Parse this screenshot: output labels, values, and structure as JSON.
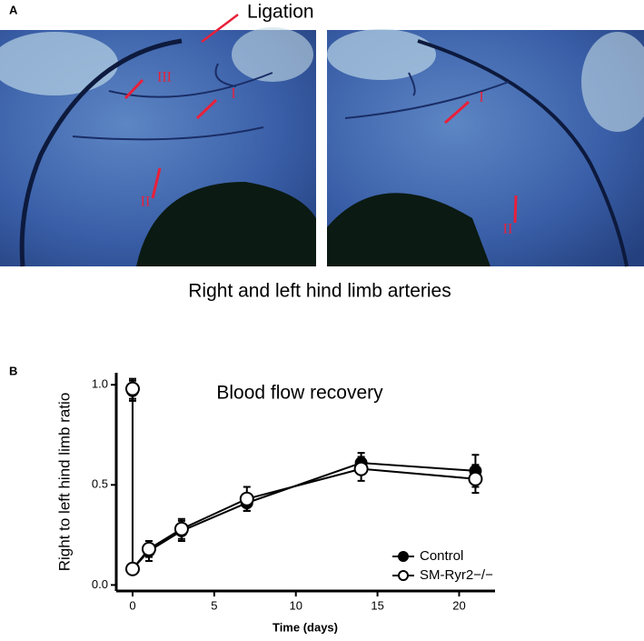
{
  "panel_a": {
    "label": "A",
    "annotation": "Ligation",
    "caption": "Right and left hind limb arteries",
    "markers": [
      "III",
      "I",
      "II",
      "I",
      "II"
    ]
  },
  "chart_data": {
    "type": "line",
    "panel_label": "B",
    "title": "Blood flow recovery",
    "x_label": "Time (days)",
    "y_label": "Right to left hind limb ratio",
    "x": [
      0,
      0,
      1,
      3,
      7,
      14,
      21
    ],
    "series": [
      {
        "name": "Control",
        "color": "#000000",
        "marker": "filled",
        "values": [
          0.97,
          0.08,
          0.17,
          0.27,
          0.41,
          0.61,
          0.57
        ],
        "errors": [
          0.05,
          0.02,
          0.05,
          0.05,
          0.04,
          0.05,
          0.08
        ]
      },
      {
        "name": "SM-Ryr2−/−",
        "color": "#000000",
        "marker": "open",
        "values": [
          0.98,
          0.08,
          0.18,
          0.28,
          0.43,
          0.58,
          0.53
        ],
        "errors": [
          0.05,
          0.02,
          0.04,
          0.05,
          0.06,
          0.06,
          0.07
        ]
      }
    ],
    "xlim": [
      -1,
      22.2
    ],
    "xticks": [
      0,
      5,
      10,
      15,
      20
    ],
    "ylim": [
      -0.03,
      1.06
    ],
    "yticks": [
      {
        "value": 0,
        "label": "0.0"
      },
      {
        "value": 0.5,
        "label": "0.5"
      },
      {
        "value": 1,
        "label": "1.0"
      }
    ],
    "legend": "lower right"
  }
}
